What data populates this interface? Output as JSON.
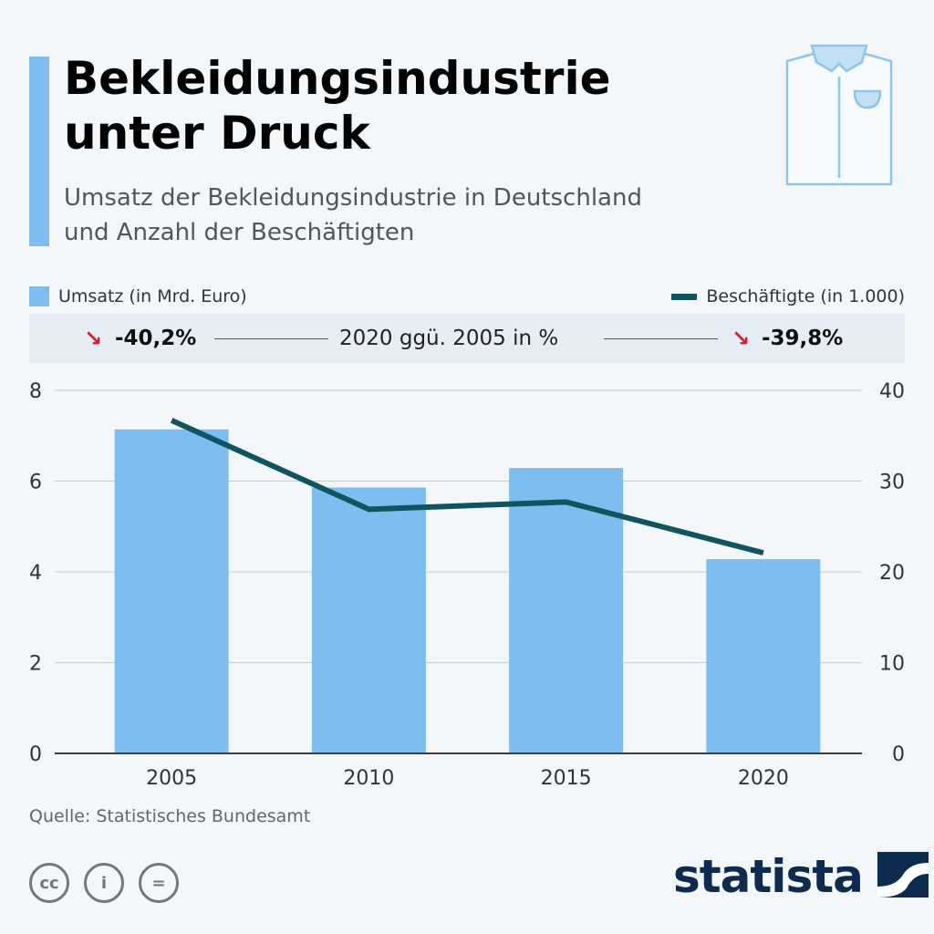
{
  "header": {
    "title_line1": "Bekleidungsindustrie",
    "title_line2": "unter Druck",
    "subtitle_line1": "Umsatz der Bekleidungsindustrie in Deutschland",
    "subtitle_line2": "und Anzahl der Beschäftigten",
    "icon": "shirt-icon"
  },
  "legend": {
    "bar": "Umsatz (in Mrd. Euro)",
    "line": "Beschäftigte (in 1.000)"
  },
  "comparison": {
    "left": "-40,2%",
    "middle": "2020 ggü. 2005 in %",
    "right": "-39,8%",
    "arrow_icon": "arrow-down-right-icon",
    "arrow_color": "#d8202c"
  },
  "source": "Quelle: Statistisches Bundesamt",
  "brand": "statista",
  "colors": {
    "bar": "#7dbdf0",
    "line": "#0f5560",
    "accent": "#7dbdf0"
  },
  "chart_data": {
    "type": "bar+line",
    "categories": [
      "2005",
      "2010",
      "2015",
      "2020"
    ],
    "series": [
      {
        "name": "Umsatz (in Mrd. Euro)",
        "type": "bar",
        "axis": "left",
        "values": [
          7.14,
          5.86,
          6.29,
          4.28
        ]
      },
      {
        "name": "Beschäftigte (in 1.000)",
        "type": "line",
        "axis": "right",
        "values": [
          36.7,
          26.9,
          27.7,
          22.1
        ]
      }
    ],
    "yleft": {
      "range": [
        0,
        8
      ],
      "ticks": [
        "0",
        "2",
        "4",
        "6",
        "8"
      ]
    },
    "yright": {
      "range": [
        0,
        40
      ],
      "ticks": [
        "0",
        "10",
        "20",
        "30",
        "40"
      ]
    },
    "grid": true
  }
}
